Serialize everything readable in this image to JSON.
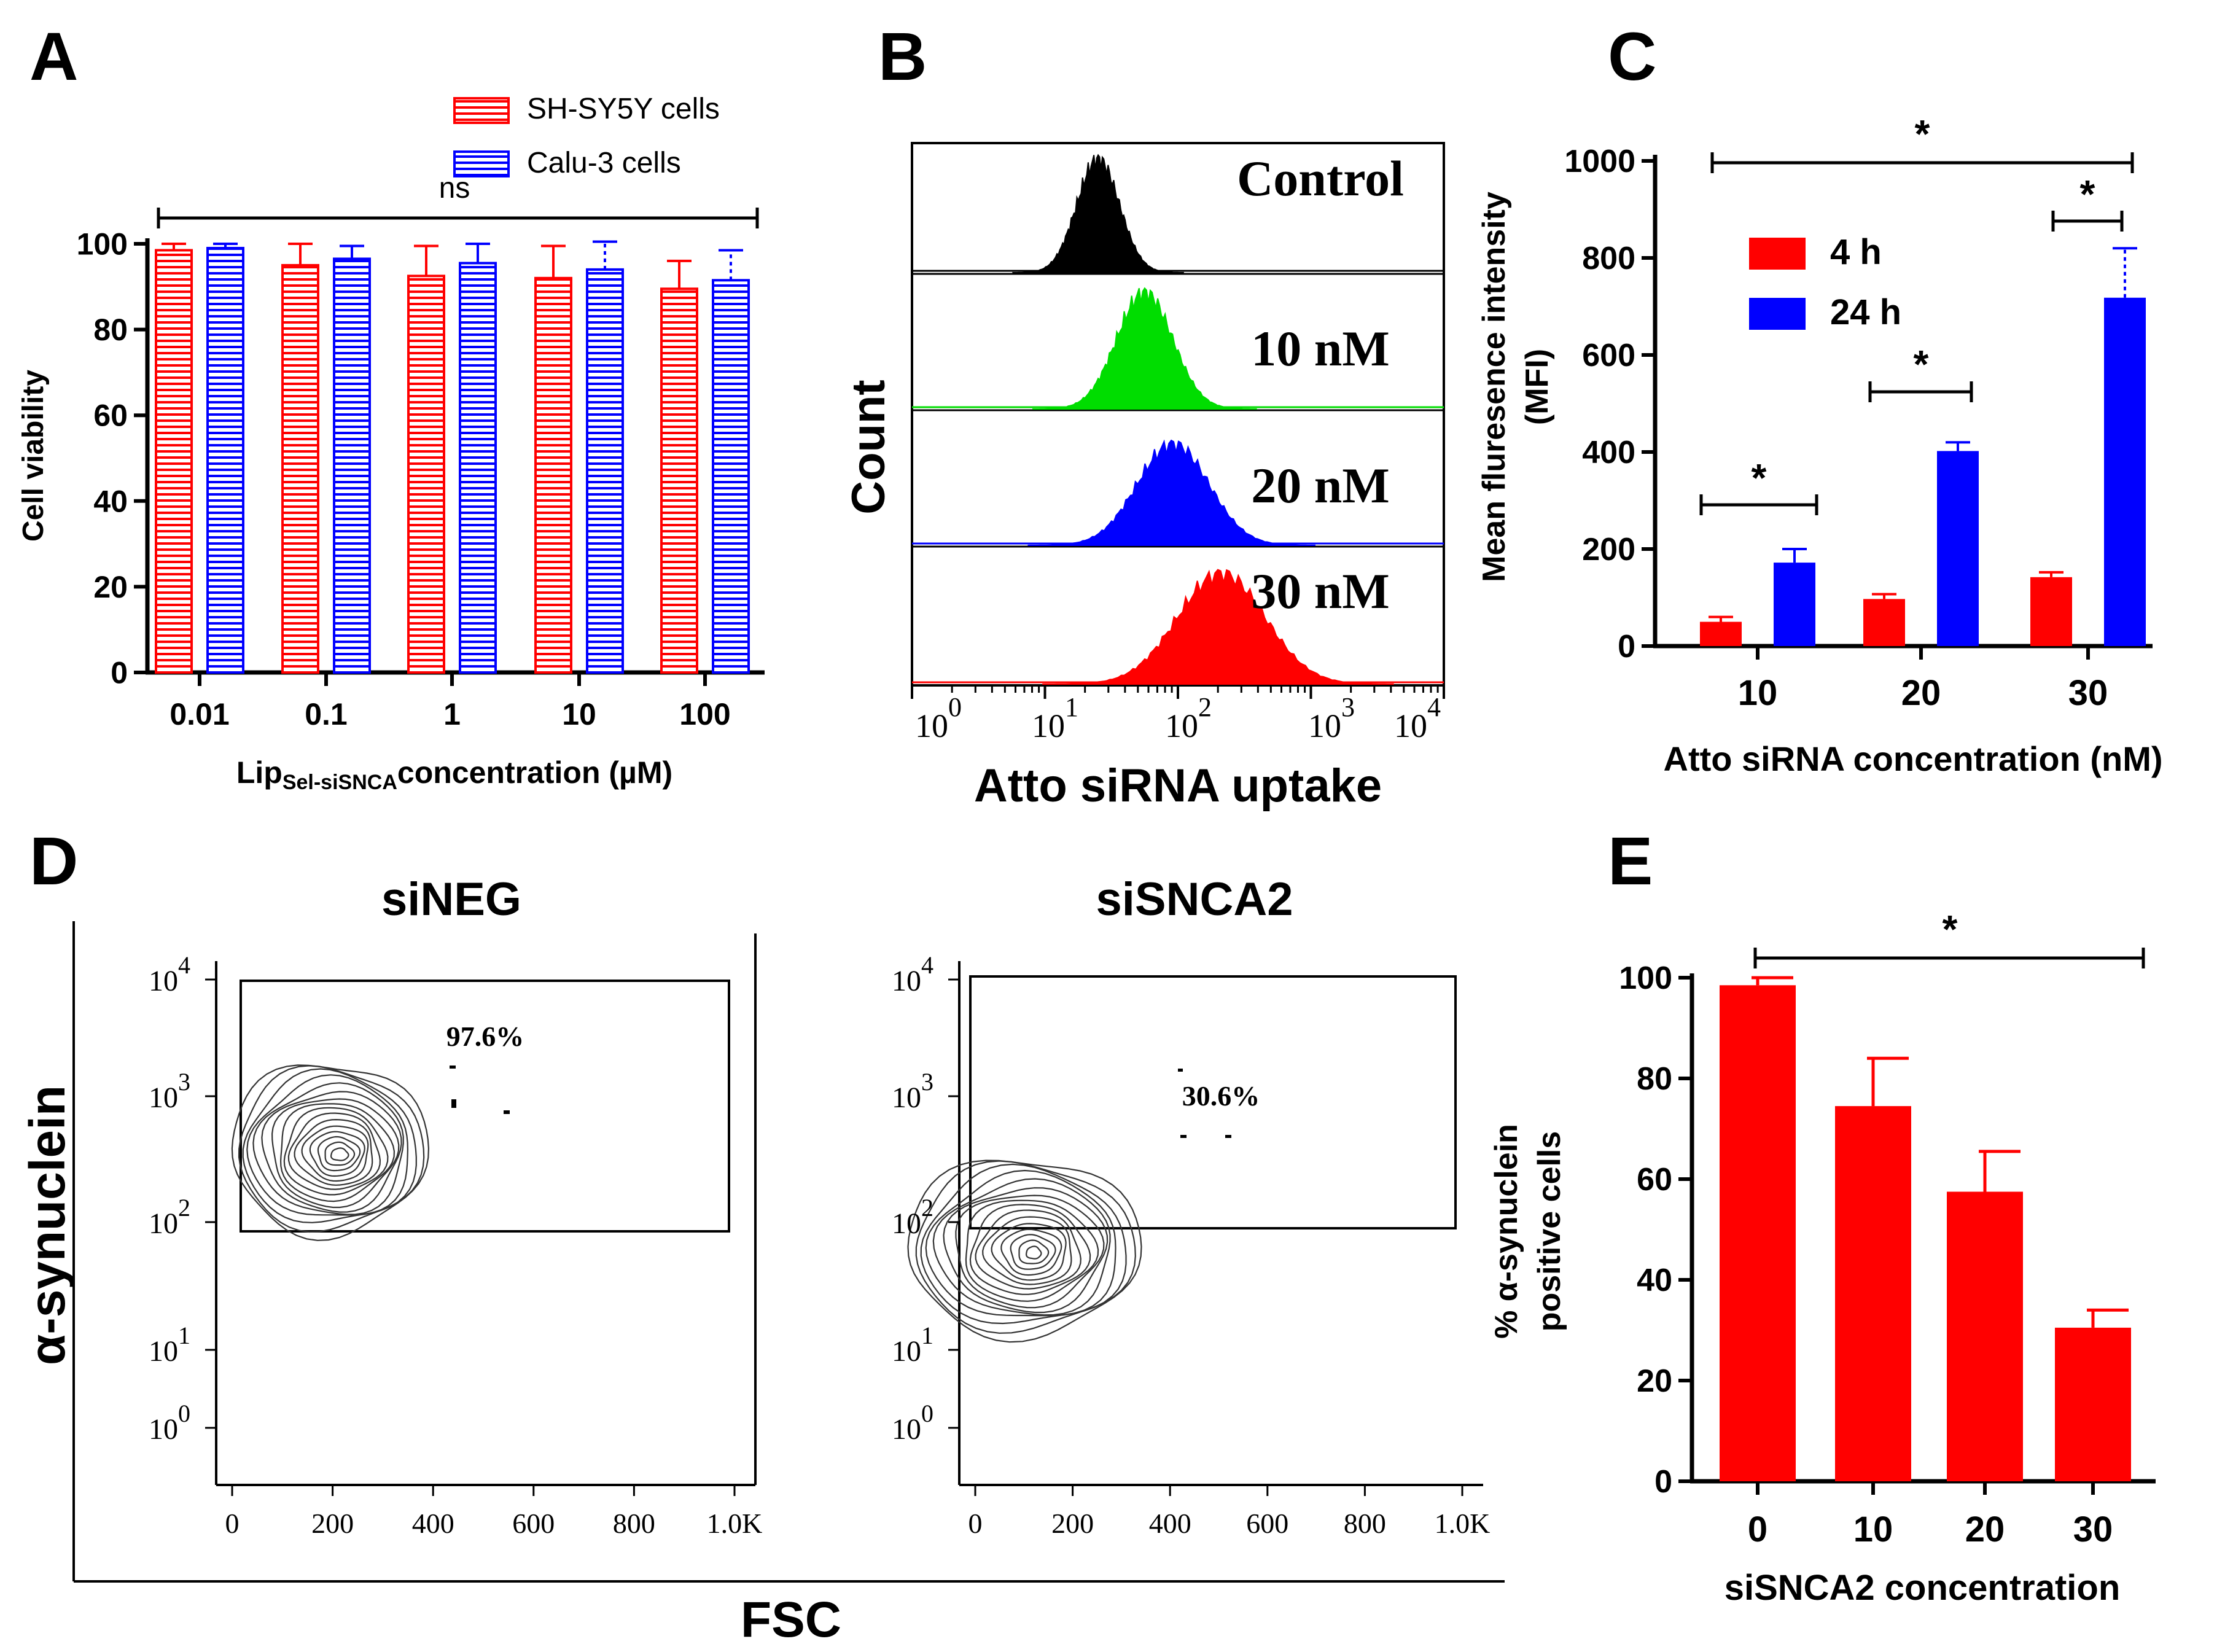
{
  "panel_labels": {
    "a": "A",
    "b": "B",
    "c": "C",
    "d": "D",
    "e": "E"
  },
  "colors": {
    "red": "#ff0000",
    "blue": "#0000ff",
    "green": "#00dd00",
    "black": "#000000"
  },
  "chart_data": [
    {
      "id": "A",
      "type": "bar",
      "title": "",
      "ylabel": "Cell viability",
      "xlabel_main": "Lip",
      "xlabel_sub": "Sel-siSNCA",
      "xlabel_tail": "concentration (µM)",
      "categories": [
        "0.01",
        "0.1",
        "1",
        "10",
        "100"
      ],
      "series": [
        {
          "name": "SH-SY5Y cells",
          "values": [
            98.5,
            95,
            92.5,
            92,
            89.5
          ],
          "errors": [
            1.5,
            5,
            7,
            7.5,
            6.5
          ],
          "color": "#ff0000"
        },
        {
          "name": "Calu-3 cells",
          "values": [
            99,
            96.5,
            95.5,
            94,
            91.5
          ],
          "errors": [
            1,
            3,
            4.5,
            6.5,
            7
          ],
          "color": "#0000ff"
        }
      ],
      "ylim": [
        0,
        100
      ],
      "yticks": [
        "0",
        "20",
        "40",
        "60",
        "80",
        "100"
      ],
      "annotations": [
        "ns"
      ],
      "legend": "top-right"
    },
    {
      "id": "B",
      "type": "histogram",
      "title": "",
      "ylabel": "Count",
      "xlabel": "Atto siRNA uptake",
      "xscale": "log",
      "xlim": [
        0,
        4
      ],
      "xticks": [
        {
          "base": "10",
          "exp": "0"
        },
        {
          "base": "10",
          "exp": "1"
        },
        {
          "base": "10",
          "exp": "2"
        },
        {
          "base": "10",
          "exp": "3"
        },
        {
          "base": "10",
          "exp": "4"
        }
      ],
      "series": [
        {
          "name": "Control",
          "peak_log10": 1.4,
          "color": "#000000"
        },
        {
          "name": "10 nM",
          "peak_log10": 1.75,
          "color": "#00dd00"
        },
        {
          "name": "20 nM",
          "peak_log10": 1.95,
          "color": "#0000ff"
        },
        {
          "name": "30 nM",
          "peak_log10": 2.3,
          "color": "#ff0000"
        }
      ]
    },
    {
      "id": "C",
      "type": "bar",
      "title": "",
      "ylabel_line1": "Mean fluresence intensity",
      "ylabel_line2": "(MFI)",
      "xlabel": "Atto siRNA concentration (nM)",
      "categories": [
        "10",
        "20",
        "30"
      ],
      "series": [
        {
          "name": "4 h",
          "values": [
            50,
            97,
            142
          ],
          "errors": [
            10,
            10,
            10
          ],
          "color": "#ff0000"
        },
        {
          "name": "24 h",
          "values": [
            172,
            402,
            718
          ],
          "errors": [
            28,
            18,
            102
          ],
          "color": "#0000ff"
        }
      ],
      "ylim": [
        0,
        1000
      ],
      "yticks": [
        "0",
        "200",
        "400",
        "600",
        "800",
        "1000"
      ],
      "annotations": [
        "*",
        "*",
        "*",
        "*"
      ],
      "legend": "top-left"
    },
    {
      "id": "D",
      "type": "contour",
      "ylabel": "α-synuclein",
      "xlabel": "FSC",
      "xticks": [
        "0",
        "200",
        "400",
        "600",
        "800",
        "1.0K"
      ],
      "yticks": [
        {
          "base": "10",
          "exp": "0"
        },
        {
          "base": "10",
          "exp": "1"
        },
        {
          "base": "10",
          "exp": "2"
        },
        {
          "base": "10",
          "exp": "3"
        },
        {
          "base": "10",
          "exp": "4"
        }
      ],
      "plots": [
        {
          "title": "siNEG",
          "gate_percent": "97.6%"
        },
        {
          "title": "siSNCA2",
          "gate_percent": "30.6%"
        }
      ]
    },
    {
      "id": "E",
      "type": "bar",
      "title": "",
      "ylabel_line1": "% α-synuclein",
      "ylabel_line2": "positive cells",
      "xlabel": "siSNCA2 concentration",
      "categories": [
        "0",
        "10",
        "20",
        "30"
      ],
      "values": [
        98.5,
        74.5,
        57.5,
        30.5
      ],
      "errors": [
        1.5,
        9.5,
        8,
        3.5
      ],
      "color": "#ff0000",
      "ylim": [
        0,
        100
      ],
      "yticks": [
        "0",
        "20",
        "40",
        "60",
        "80",
        "100"
      ],
      "annotations": [
        "*"
      ]
    }
  ]
}
